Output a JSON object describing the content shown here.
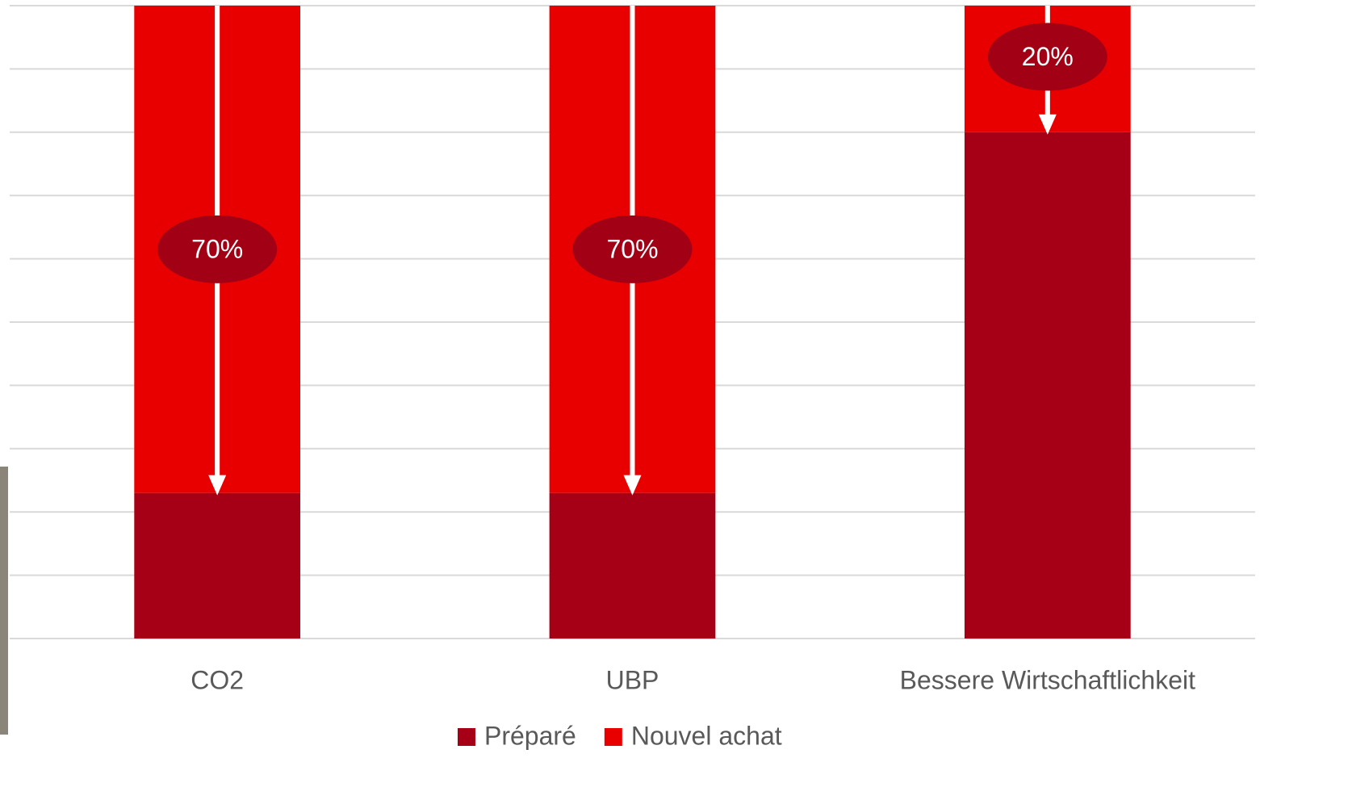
{
  "chart_data": {
    "type": "stacked_bar",
    "categories": [
      "CO2",
      "UBP",
      "Bessere Wirtschaftlichkeit"
    ],
    "series": [
      {
        "name": "Préparé",
        "color": "#a50016",
        "values": [
          23,
          23,
          80
        ]
      },
      {
        "name": "Nouvel achat",
        "color": "#e80000",
        "values": [
          77,
          77,
          20
        ]
      }
    ],
    "annotations": [
      "70%",
      "70%",
      "20%"
    ],
    "annotation_color": "#a10015",
    "ylim": [
      0,
      100
    ],
    "yticks": [
      0,
      10,
      20,
      30,
      40,
      50,
      60,
      70,
      80,
      90,
      100
    ],
    "grid": true,
    "show_ytick_labels": false,
    "legend": "bottom"
  }
}
